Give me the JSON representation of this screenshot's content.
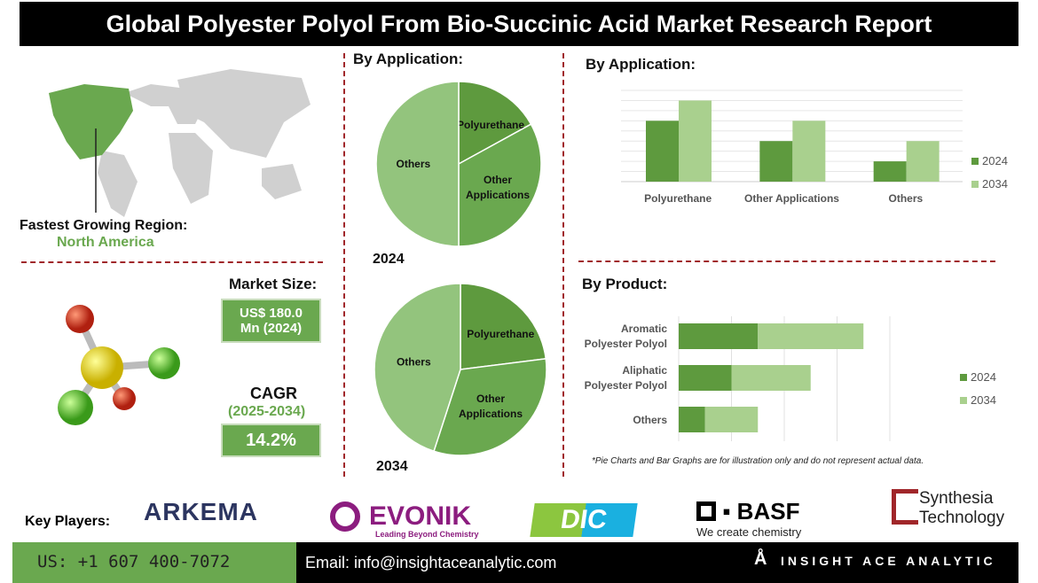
{
  "title": "Global Polyester Polyol From Bio-Succinic Acid Market Research Report",
  "region": {
    "label": "Fastest Growing Region:",
    "value": "North America"
  },
  "market": {
    "label": "Market Size:",
    "value_line1": "US$ 180.0",
    "value_line2": "Mn (2024)",
    "cagr_label": "CAGR",
    "cagr_period": "(2025-2034)",
    "cagr_value": "14.2%"
  },
  "colors": {
    "dark_green": "#5e9a3e",
    "mid_green": "#6aa84f",
    "light_green": "#93c47d",
    "pale_green": "#a9d08e",
    "accent_red": "#a0262a"
  },
  "pies": {
    "heading": "By Application:",
    "charts": [
      {
        "year": "2024",
        "slices": [
          {
            "label": "Polyurethane",
            "value": 17,
            "color": "#5e9a3e"
          },
          {
            "label": "Other Applications",
            "value": 33,
            "color": "#6aa84f"
          },
          {
            "label": "Others",
            "value": 50,
            "color": "#93c47d"
          }
        ]
      },
      {
        "year": "2034",
        "slices": [
          {
            "label": "Polyurethane",
            "value": 23,
            "color": "#5e9a3e"
          },
          {
            "label": "Other Applications",
            "value": 32,
            "color": "#6aa84f"
          },
          {
            "label": "Others",
            "value": 45,
            "color": "#93c47d"
          }
        ]
      }
    ]
  },
  "chart_data": [
    {
      "type": "bar",
      "title": "By Application:",
      "categories": [
        "Polyurethane",
        "Other Applications",
        "Others"
      ],
      "series": [
        {
          "name": "2024",
          "values": [
            6,
            4,
            2
          ]
        },
        {
          "name": "2034",
          "values": [
            8,
            6,
            4
          ]
        }
      ],
      "ylim": [
        0,
        9
      ],
      "grid": true,
      "legend": "right"
    },
    {
      "type": "bar",
      "orientation": "horizontal",
      "stacked": true,
      "title": "By Product:",
      "categories": [
        "Aromatic Polyester Polyol",
        "Aliphatic Polyester Polyol",
        "Others"
      ],
      "series": [
        {
          "name": "2024",
          "values": [
            1.5,
            1,
            0.5
          ]
        },
        {
          "name": "2034",
          "values": [
            2,
            1.5,
            1
          ]
        }
      ],
      "xlim": [
        0,
        4
      ],
      "grid": true,
      "legend": "right"
    }
  ],
  "note": "*Pie Charts and Bar Graphs are for illustration only and do not represent actual data.",
  "key_players": {
    "label": "Key Players:",
    "logos": [
      "ARKEMA",
      "EVONIK",
      "Leading Beyond Chemistry",
      "DIC",
      "BASF",
      "We create chemistry",
      "Synthesia",
      "Technology"
    ]
  },
  "footer": {
    "phone": "US: +1 607 400-7072",
    "email": "Email: info@insightaceanalytic.com",
    "brand": "INSIGHT ACE ANALYTIC"
  }
}
